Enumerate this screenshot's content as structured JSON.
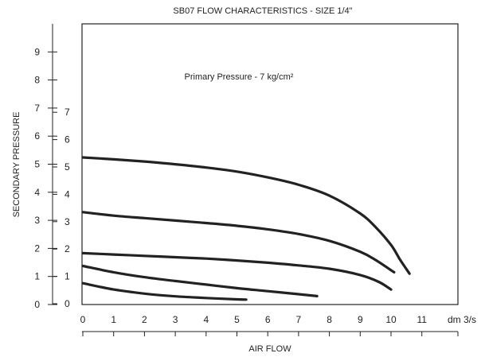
{
  "chart_data": {
    "type": "line",
    "title": "SB07 FLOW CHARACTERISTICS - SIZE 1/4\"",
    "annotation": "Primary Pressure - 7 kg/cm²",
    "xlabel": "AIR FLOW",
    "ylabel": "SECONDARY PRESSURE",
    "x_unit_label": "dm 3/s",
    "xlim": [
      0,
      12
    ],
    "ylim": [
      0,
      9
    ],
    "x_ticks": [
      "0",
      "1",
      "2",
      "3",
      "4",
      "5",
      "6",
      "7",
      "8",
      "9",
      "10",
      "11"
    ],
    "y_ticks_outer": [
      "0",
      "1",
      "2",
      "3",
      "4",
      "5",
      "6",
      "7",
      "8",
      "9"
    ],
    "y_ticks_inner": [
      "0",
      "1",
      "2",
      "3",
      "4",
      "5",
      "6",
      "7"
    ],
    "grid": false,
    "line_color": "#222222",
    "series": [
      {
        "x": [
          0,
          1,
          2,
          3,
          4,
          5,
          6,
          7,
          8,
          9,
          9.5,
          10,
          10.3,
          10.6
        ],
        "y": [
          5.35,
          5.28,
          5.2,
          5.1,
          4.98,
          4.83,
          4.62,
          4.35,
          3.95,
          3.3,
          2.8,
          2.15,
          1.6,
          1.1
        ]
      },
      {
        "x": [
          0,
          1,
          2,
          3,
          4,
          5,
          6,
          7,
          8,
          9,
          9.5,
          10.1
        ],
        "y": [
          3.35,
          3.22,
          3.13,
          3.04,
          2.95,
          2.85,
          2.72,
          2.55,
          2.3,
          1.9,
          1.6,
          1.15
        ]
      },
      {
        "x": [
          0,
          1,
          2,
          3,
          4,
          5,
          6,
          7,
          8,
          9,
          9.6,
          10.0
        ],
        "y": [
          1.85,
          1.8,
          1.75,
          1.7,
          1.65,
          1.58,
          1.5,
          1.4,
          1.28,
          1.05,
          0.8,
          0.52
        ]
      },
      {
        "x": [
          0,
          1,
          2,
          3,
          4,
          5,
          6,
          7,
          7.6
        ],
        "y": [
          1.38,
          1.15,
          0.97,
          0.83,
          0.7,
          0.57,
          0.46,
          0.35,
          0.28
        ]
      },
      {
        "x": [
          0,
          1,
          2,
          3,
          4,
          5,
          5.3
        ],
        "y": [
          0.75,
          0.52,
          0.37,
          0.27,
          0.21,
          0.16,
          0.15
        ]
      }
    ]
  }
}
